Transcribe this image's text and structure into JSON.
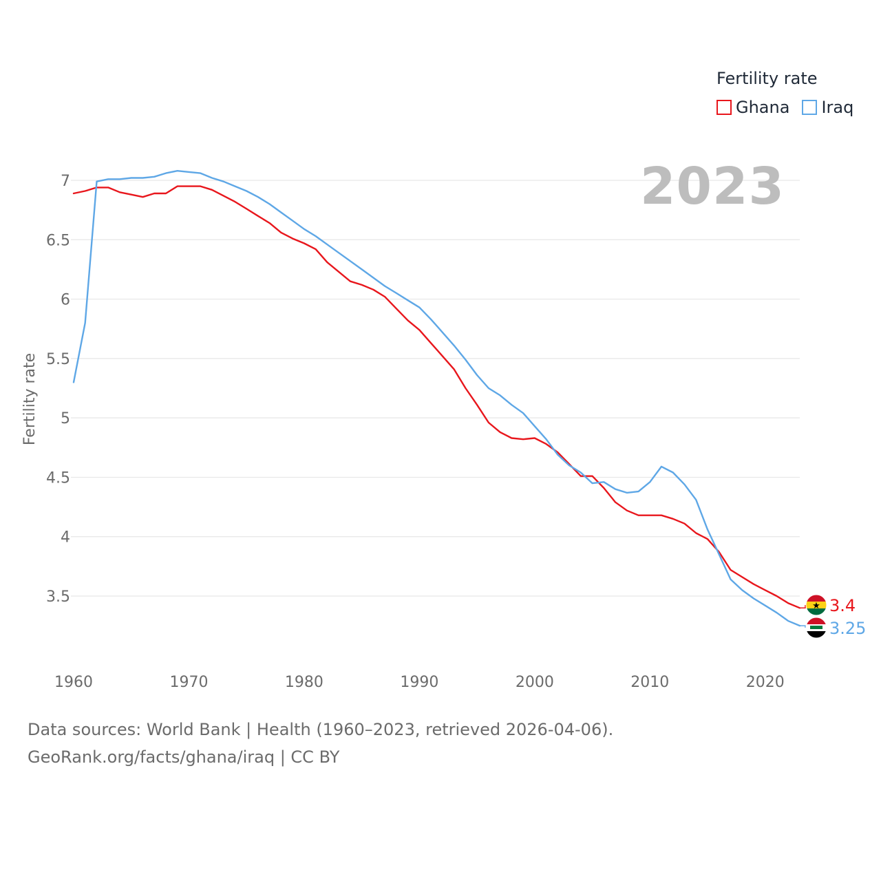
{
  "legend": {
    "title": "Fertility rate",
    "items": [
      {
        "label": "Ghana",
        "color": "#e8161c"
      },
      {
        "label": "Iraq",
        "color": "#5ea7e6"
      }
    ]
  },
  "year_label": "2023",
  "footer": {
    "line1": "Data sources: World Bank | Health (1960–2023, retrieved 2026-04-06).",
    "line2": "GeoRank.org/facts/ghana/iraq | CC BY"
  },
  "chart_data": {
    "type": "line",
    "title": "Fertility rate",
    "xlabel": "",
    "ylabel": "Fertility rate",
    "xlim": [
      1960,
      2023
    ],
    "ylim": [
      3.1,
      7.1
    ],
    "x_ticks": [
      1960,
      1970,
      1980,
      1990,
      2000,
      2010,
      2020
    ],
    "y_ticks": [
      3.5,
      4,
      4.5,
      5,
      5.5,
      6,
      6.5,
      7
    ],
    "grid": true,
    "x": [
      1960,
      1961,
      1962,
      1963,
      1964,
      1965,
      1966,
      1967,
      1968,
      1969,
      1970,
      1971,
      1972,
      1973,
      1974,
      1975,
      1976,
      1977,
      1978,
      1979,
      1980,
      1981,
      1982,
      1983,
      1984,
      1985,
      1986,
      1987,
      1988,
      1989,
      1990,
      1991,
      1992,
      1993,
      1994,
      1995,
      1996,
      1997,
      1998,
      1999,
      2000,
      2001,
      2002,
      2003,
      2004,
      2005,
      2006,
      2007,
      2008,
      2009,
      2010,
      2011,
      2012,
      2013,
      2014,
      2015,
      2016,
      2017,
      2018,
      2019,
      2020,
      2021,
      2022,
      2023
    ],
    "series": [
      {
        "name": "Ghana",
        "color": "#e8161c",
        "end_label": "3.4",
        "values": [
          6.89,
          6.91,
          6.94,
          6.94,
          6.9,
          6.88,
          6.86,
          6.89,
          6.89,
          6.95,
          6.95,
          6.95,
          6.92,
          6.87,
          6.82,
          6.76,
          6.7,
          6.64,
          6.56,
          6.51,
          6.47,
          6.42,
          6.31,
          6.23,
          6.15,
          6.12,
          6.08,
          6.02,
          5.92,
          5.82,
          5.74,
          5.63,
          5.52,
          5.41,
          5.25,
          5.11,
          4.96,
          4.88,
          4.83,
          4.82,
          4.83,
          4.78,
          4.71,
          4.61,
          4.51,
          4.51,
          4.41,
          4.29,
          4.22,
          4.18,
          4.18,
          4.18,
          4.15,
          4.11,
          4.03,
          3.98,
          3.87,
          3.72,
          3.66,
          3.6,
          3.55,
          3.5,
          3.44,
          3.4
        ]
      },
      {
        "name": "Iraq",
        "color": "#5ea7e6",
        "end_label": "3.25",
        "values": [
          5.3,
          5.8,
          6.99,
          7.01,
          7.01,
          7.02,
          7.02,
          7.03,
          7.06,
          7.08,
          7.07,
          7.06,
          7.02,
          6.99,
          6.95,
          6.91,
          6.86,
          6.8,
          6.73,
          6.66,
          6.59,
          6.53,
          6.46,
          6.39,
          6.32,
          6.25,
          6.18,
          6.11,
          6.05,
          5.99,
          5.93,
          5.83,
          5.72,
          5.61,
          5.49,
          5.36,
          5.25,
          5.19,
          5.11,
          5.04,
          4.93,
          4.82,
          4.69,
          4.6,
          4.54,
          4.45,
          4.46,
          4.4,
          4.37,
          4.38,
          4.46,
          4.59,
          4.54,
          4.44,
          4.31,
          4.06,
          3.85,
          3.64,
          3.55,
          3.48,
          3.42,
          3.36,
          3.29,
          3.25
        ]
      }
    ]
  }
}
